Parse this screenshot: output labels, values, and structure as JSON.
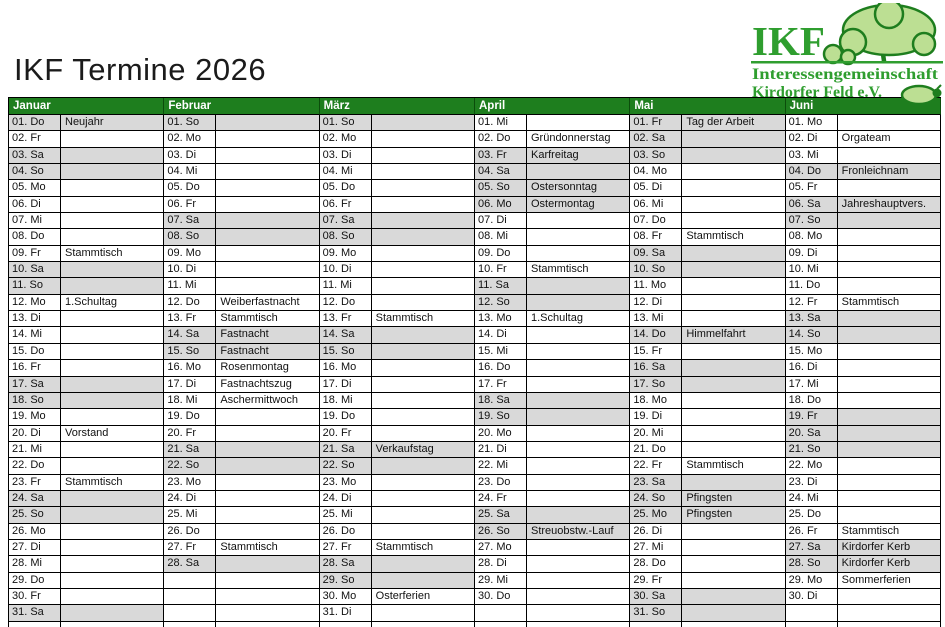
{
  "page": {
    "title": "IKF Termine 2026"
  },
  "logo": {
    "acronym": "IKF",
    "line1": "Interessengemeinschaft",
    "line2": "Kirdorfer Feld e.V."
  },
  "colors": {
    "header_green": "#1e7e1e",
    "weekend_gray": "#d9d9d9",
    "logo_green": "#2f9e2f",
    "foliage_light": "#bcdf93",
    "foliage_outline": "#1e7e1e"
  },
  "calendar": {
    "months": [
      {
        "name": "Januar",
        "days": [
          {
            "d": "01. Do",
            "e": "Neujahr",
            "s": true
          },
          {
            "d": "02. Fr",
            "e": "",
            "s": false
          },
          {
            "d": "03. Sa",
            "e": "",
            "s": true
          },
          {
            "d": "04. So",
            "e": "",
            "s": true
          },
          {
            "d": "05. Mo",
            "e": "",
            "s": false
          },
          {
            "d": "06. Di",
            "e": "",
            "s": false
          },
          {
            "d": "07. Mi",
            "e": "",
            "s": false
          },
          {
            "d": "08. Do",
            "e": "",
            "s": false
          },
          {
            "d": "09. Fr",
            "e": "Stammtisch",
            "s": false
          },
          {
            "d": "10. Sa",
            "e": "",
            "s": true
          },
          {
            "d": "11. So",
            "e": "",
            "s": true
          },
          {
            "d": "12. Mo",
            "e": "1.Schultag",
            "s": false
          },
          {
            "d": "13. Di",
            "e": "",
            "s": false
          },
          {
            "d": "14. Mi",
            "e": "",
            "s": false
          },
          {
            "d": "15. Do",
            "e": "",
            "s": false
          },
          {
            "d": "16. Fr",
            "e": "",
            "s": false
          },
          {
            "d": "17. Sa",
            "e": "",
            "s": true
          },
          {
            "d": "18. So",
            "e": "",
            "s": true
          },
          {
            "d": "19. Mo",
            "e": "",
            "s": false
          },
          {
            "d": "20. Di",
            "e": "Vorstand",
            "s": false
          },
          {
            "d": "21. Mi",
            "e": "",
            "s": false
          },
          {
            "d": "22. Do",
            "e": "",
            "s": false
          },
          {
            "d": "23. Fr",
            "e": "Stammtisch",
            "s": false
          },
          {
            "d": "24. Sa",
            "e": "",
            "s": true
          },
          {
            "d": "25. So",
            "e": "",
            "s": true
          },
          {
            "d": "26. Mo",
            "e": "",
            "s": false
          },
          {
            "d": "27. Di",
            "e": "",
            "s": false
          },
          {
            "d": "28. Mi",
            "e": "",
            "s": false
          },
          {
            "d": "29. Do",
            "e": "",
            "s": false
          },
          {
            "d": "30. Fr",
            "e": "",
            "s": false
          },
          {
            "d": "31. Sa",
            "e": "",
            "s": true
          }
        ]
      },
      {
        "name": "Februar",
        "days": [
          {
            "d": "01. So",
            "e": "",
            "s": true
          },
          {
            "d": "02. Mo",
            "e": "",
            "s": false
          },
          {
            "d": "03. Di",
            "e": "",
            "s": false
          },
          {
            "d": "04. Mi",
            "e": "",
            "s": false
          },
          {
            "d": "05. Do",
            "e": "",
            "s": false
          },
          {
            "d": "06. Fr",
            "e": "",
            "s": false
          },
          {
            "d": "07. Sa",
            "e": "",
            "s": true
          },
          {
            "d": "08. So",
            "e": "",
            "s": true
          },
          {
            "d": "09. Mo",
            "e": "",
            "s": false
          },
          {
            "d": "10. Di",
            "e": "",
            "s": false
          },
          {
            "d": "11. Mi",
            "e": "",
            "s": false
          },
          {
            "d": "12. Do",
            "e": "Weiberfastnacht",
            "s": false
          },
          {
            "d": "13. Fr",
            "e": "Stammtisch",
            "s": false
          },
          {
            "d": "14. Sa",
            "e": "Fastnacht",
            "s": true
          },
          {
            "d": "15. So",
            "e": "Fastnacht",
            "s": true
          },
          {
            "d": "16. Mo",
            "e": "Rosenmontag",
            "s": false
          },
          {
            "d": "17. Di",
            "e": "Fastnachtszug",
            "s": false
          },
          {
            "d": "18. Mi",
            "e": "Aschermittwoch",
            "s": false
          },
          {
            "d": "19. Do",
            "e": "",
            "s": false
          },
          {
            "d": "20. Fr",
            "e": "",
            "s": false
          },
          {
            "d": "21. Sa",
            "e": "",
            "s": true
          },
          {
            "d": "22. So",
            "e": "",
            "s": true
          },
          {
            "d": "23. Mo",
            "e": "",
            "s": false
          },
          {
            "d": "24. Di",
            "e": "",
            "s": false
          },
          {
            "d": "25. Mi",
            "e": "",
            "s": false
          },
          {
            "d": "26. Do",
            "e": "",
            "s": false
          },
          {
            "d": "27. Fr",
            "e": "Stammtisch",
            "s": false
          },
          {
            "d": "28. Sa",
            "e": "",
            "s": true
          },
          {
            "d": "",
            "e": "",
            "s": false
          },
          {
            "d": "",
            "e": "",
            "s": false
          },
          {
            "d": "",
            "e": "",
            "s": false
          }
        ]
      },
      {
        "name": "März",
        "days": [
          {
            "d": "01. So",
            "e": "",
            "s": true
          },
          {
            "d": "02. Mo",
            "e": "",
            "s": false
          },
          {
            "d": "03. Di",
            "e": "",
            "s": false
          },
          {
            "d": "04. Mi",
            "e": "",
            "s": false
          },
          {
            "d": "05. Do",
            "e": "",
            "s": false
          },
          {
            "d": "06. Fr",
            "e": "",
            "s": false
          },
          {
            "d": "07. Sa",
            "e": "",
            "s": true
          },
          {
            "d": "08. So",
            "e": "",
            "s": true
          },
          {
            "d": "09. Mo",
            "e": "",
            "s": false
          },
          {
            "d": "10. Di",
            "e": "",
            "s": false
          },
          {
            "d": "11. Mi",
            "e": "",
            "s": false
          },
          {
            "d": "12. Do",
            "e": "",
            "s": false
          },
          {
            "d": "13. Fr",
            "e": "Stammtisch",
            "s": false
          },
          {
            "d": "14. Sa",
            "e": "",
            "s": true
          },
          {
            "d": "15. So",
            "e": "",
            "s": true
          },
          {
            "d": "16. Mo",
            "e": "",
            "s": false
          },
          {
            "d": "17. Di",
            "e": "",
            "s": false
          },
          {
            "d": "18. Mi",
            "e": "",
            "s": false
          },
          {
            "d": "19. Do",
            "e": "",
            "s": false
          },
          {
            "d": "20. Fr",
            "e": "",
            "s": false
          },
          {
            "d": "21. Sa",
            "e": "Verkaufstag",
            "s": true
          },
          {
            "d": "22. So",
            "e": "",
            "s": true
          },
          {
            "d": "23. Mo",
            "e": "",
            "s": false
          },
          {
            "d": "24. Di",
            "e": "",
            "s": false
          },
          {
            "d": "25. Mi",
            "e": "",
            "s": false
          },
          {
            "d": "26. Do",
            "e": "",
            "s": false
          },
          {
            "d": "27. Fr",
            "e": "Stammtisch",
            "s": false
          },
          {
            "d": "28. Sa",
            "e": "",
            "s": true
          },
          {
            "d": "29. So",
            "e": "",
            "s": true
          },
          {
            "d": "30. Mo",
            "e": "Osterferien",
            "s": false
          },
          {
            "d": "31. Di",
            "e": "",
            "s": false
          }
        ]
      },
      {
        "name": "April",
        "days": [
          {
            "d": "01. Mi",
            "e": "",
            "s": false
          },
          {
            "d": "02. Do",
            "e": "Gründonnerstag",
            "s": false
          },
          {
            "d": "03. Fr",
            "e": "Karfreitag",
            "s": true
          },
          {
            "d": "04. Sa",
            "e": "",
            "s": true
          },
          {
            "d": "05. So",
            "e": "Ostersonntag",
            "s": true
          },
          {
            "d": "06. Mo",
            "e": "Ostermontag",
            "s": true
          },
          {
            "d": "07. Di",
            "e": "",
            "s": false
          },
          {
            "d": "08. Mi",
            "e": "",
            "s": false
          },
          {
            "d": "09. Do",
            "e": "",
            "s": false
          },
          {
            "d": "10. Fr",
            "e": "Stammtisch",
            "s": false
          },
          {
            "d": "11. Sa",
            "e": "",
            "s": true
          },
          {
            "d": "12. So",
            "e": "",
            "s": true
          },
          {
            "d": "13. Mo",
            "e": "1.Schultag",
            "s": false
          },
          {
            "d": "14. Di",
            "e": "",
            "s": false
          },
          {
            "d": "15. Mi",
            "e": "",
            "s": false
          },
          {
            "d": "16. Do",
            "e": "",
            "s": false
          },
          {
            "d": "17. Fr",
            "e": "",
            "s": false
          },
          {
            "d": "18. Sa",
            "e": "",
            "s": true
          },
          {
            "d": "19. So",
            "e": "",
            "s": true
          },
          {
            "d": "20. Mo",
            "e": "",
            "s": false
          },
          {
            "d": "21. Di",
            "e": "",
            "s": false
          },
          {
            "d": "22. Mi",
            "e": "",
            "s": false
          },
          {
            "d": "23. Do",
            "e": "",
            "s": false
          },
          {
            "d": "24. Fr",
            "e": "",
            "s": false
          },
          {
            "d": "25. Sa",
            "e": "",
            "s": true
          },
          {
            "d": "26. So",
            "e": "Streuobstw.-Lauf",
            "s": true
          },
          {
            "d": "27. Mo",
            "e": "",
            "s": false
          },
          {
            "d": "28. Di",
            "e": "",
            "s": false
          },
          {
            "d": "29. Mi",
            "e": "",
            "s": false
          },
          {
            "d": "30. Do",
            "e": "",
            "s": false
          },
          {
            "d": "",
            "e": "",
            "s": false
          }
        ]
      },
      {
        "name": "Mai",
        "days": [
          {
            "d": "01. Fr",
            "e": "Tag der Arbeit",
            "s": true
          },
          {
            "d": "02. Sa",
            "e": "",
            "s": true
          },
          {
            "d": "03. So",
            "e": "",
            "s": true
          },
          {
            "d": "04. Mo",
            "e": "",
            "s": false
          },
          {
            "d": "05. Di",
            "e": "",
            "s": false
          },
          {
            "d": "06. Mi",
            "e": "",
            "s": false
          },
          {
            "d": "07. Do",
            "e": "",
            "s": false
          },
          {
            "d": "08. Fr",
            "e": "Stammtisch",
            "s": false
          },
          {
            "d": "09. Sa",
            "e": "",
            "s": true
          },
          {
            "d": "10. So",
            "e": "",
            "s": true
          },
          {
            "d": "11. Mo",
            "e": "",
            "s": false
          },
          {
            "d": "12. Di",
            "e": "",
            "s": false
          },
          {
            "d": "13. Mi",
            "e": "",
            "s": false
          },
          {
            "d": "14. Do",
            "e": "Himmelfahrt",
            "s": true
          },
          {
            "d": "15. Fr",
            "e": "",
            "s": false
          },
          {
            "d": "16. Sa",
            "e": "",
            "s": true
          },
          {
            "d": "17. So",
            "e": "",
            "s": true
          },
          {
            "d": "18. Mo",
            "e": "",
            "s": false
          },
          {
            "d": "19. Di",
            "e": "",
            "s": false
          },
          {
            "d": "20. Mi",
            "e": "",
            "s": false
          },
          {
            "d": "21. Do",
            "e": "",
            "s": false
          },
          {
            "d": "22. Fr",
            "e": "Stammtisch",
            "s": false
          },
          {
            "d": "23. Sa",
            "e": "",
            "s": true
          },
          {
            "d": "24. So",
            "e": "Pfingsten",
            "s": true
          },
          {
            "d": "25. Mo",
            "e": "Pfingsten",
            "s": true
          },
          {
            "d": "26. Di",
            "e": "",
            "s": false
          },
          {
            "d": "27. Mi",
            "e": "",
            "s": false
          },
          {
            "d": "28. Do",
            "e": "",
            "s": false
          },
          {
            "d": "29. Fr",
            "e": "",
            "s": false
          },
          {
            "d": "30. Sa",
            "e": "",
            "s": true
          },
          {
            "d": "31. So",
            "e": "",
            "s": true
          }
        ]
      },
      {
        "name": "Juni",
        "days": [
          {
            "d": "01. Mo",
            "e": "",
            "s": false
          },
          {
            "d": "02. Di",
            "e": "Orgateam",
            "s": false
          },
          {
            "d": "03. Mi",
            "e": "",
            "s": false
          },
          {
            "d": "04. Do",
            "e": "Fronleichnam",
            "s": true
          },
          {
            "d": "05. Fr",
            "e": "",
            "s": false
          },
          {
            "d": "06. Sa",
            "e": "Jahreshauptvers.",
            "s": true
          },
          {
            "d": "07. So",
            "e": "",
            "s": true
          },
          {
            "d": "08. Mo",
            "e": "",
            "s": false
          },
          {
            "d": "09. Di",
            "e": "",
            "s": false
          },
          {
            "d": "10. Mi",
            "e": "",
            "s": false
          },
          {
            "d": "11. Do",
            "e": "",
            "s": false
          },
          {
            "d": "12. Fr",
            "e": "Stammtisch",
            "s": false
          },
          {
            "d": "13. Sa",
            "e": "",
            "s": true
          },
          {
            "d": "14. So",
            "e": "",
            "s": true
          },
          {
            "d": "15. Mo",
            "e": "",
            "s": false
          },
          {
            "d": "16. Di",
            "e": "",
            "s": false
          },
          {
            "d": "17. Mi",
            "e": "",
            "s": false
          },
          {
            "d": "18. Do",
            "e": "",
            "s": false
          },
          {
            "d": "19. Fr",
            "e": "",
            "s": true
          },
          {
            "d": "20. Sa",
            "e": "",
            "s": true
          },
          {
            "d": "21. So",
            "e": "",
            "s": true
          },
          {
            "d": "22. Mo",
            "e": "",
            "s": false
          },
          {
            "d": "23. Di",
            "e": "",
            "s": false
          },
          {
            "d": "24. Mi",
            "e": "",
            "s": false
          },
          {
            "d": "25. Do",
            "e": "",
            "s": false
          },
          {
            "d": "26. Fr",
            "e": "Stammtisch",
            "s": false
          },
          {
            "d": "27. Sa",
            "e": "Kirdorfer Kerb",
            "s": true
          },
          {
            "d": "28. So",
            "e": "Kirdorfer Kerb",
            "s": true
          },
          {
            "d": "29. Mo",
            "e": "Sommerferien",
            "s": false
          },
          {
            "d": "30. Di",
            "e": "",
            "s": false
          },
          {
            "d": "",
            "e": "",
            "s": false
          }
        ]
      }
    ]
  }
}
